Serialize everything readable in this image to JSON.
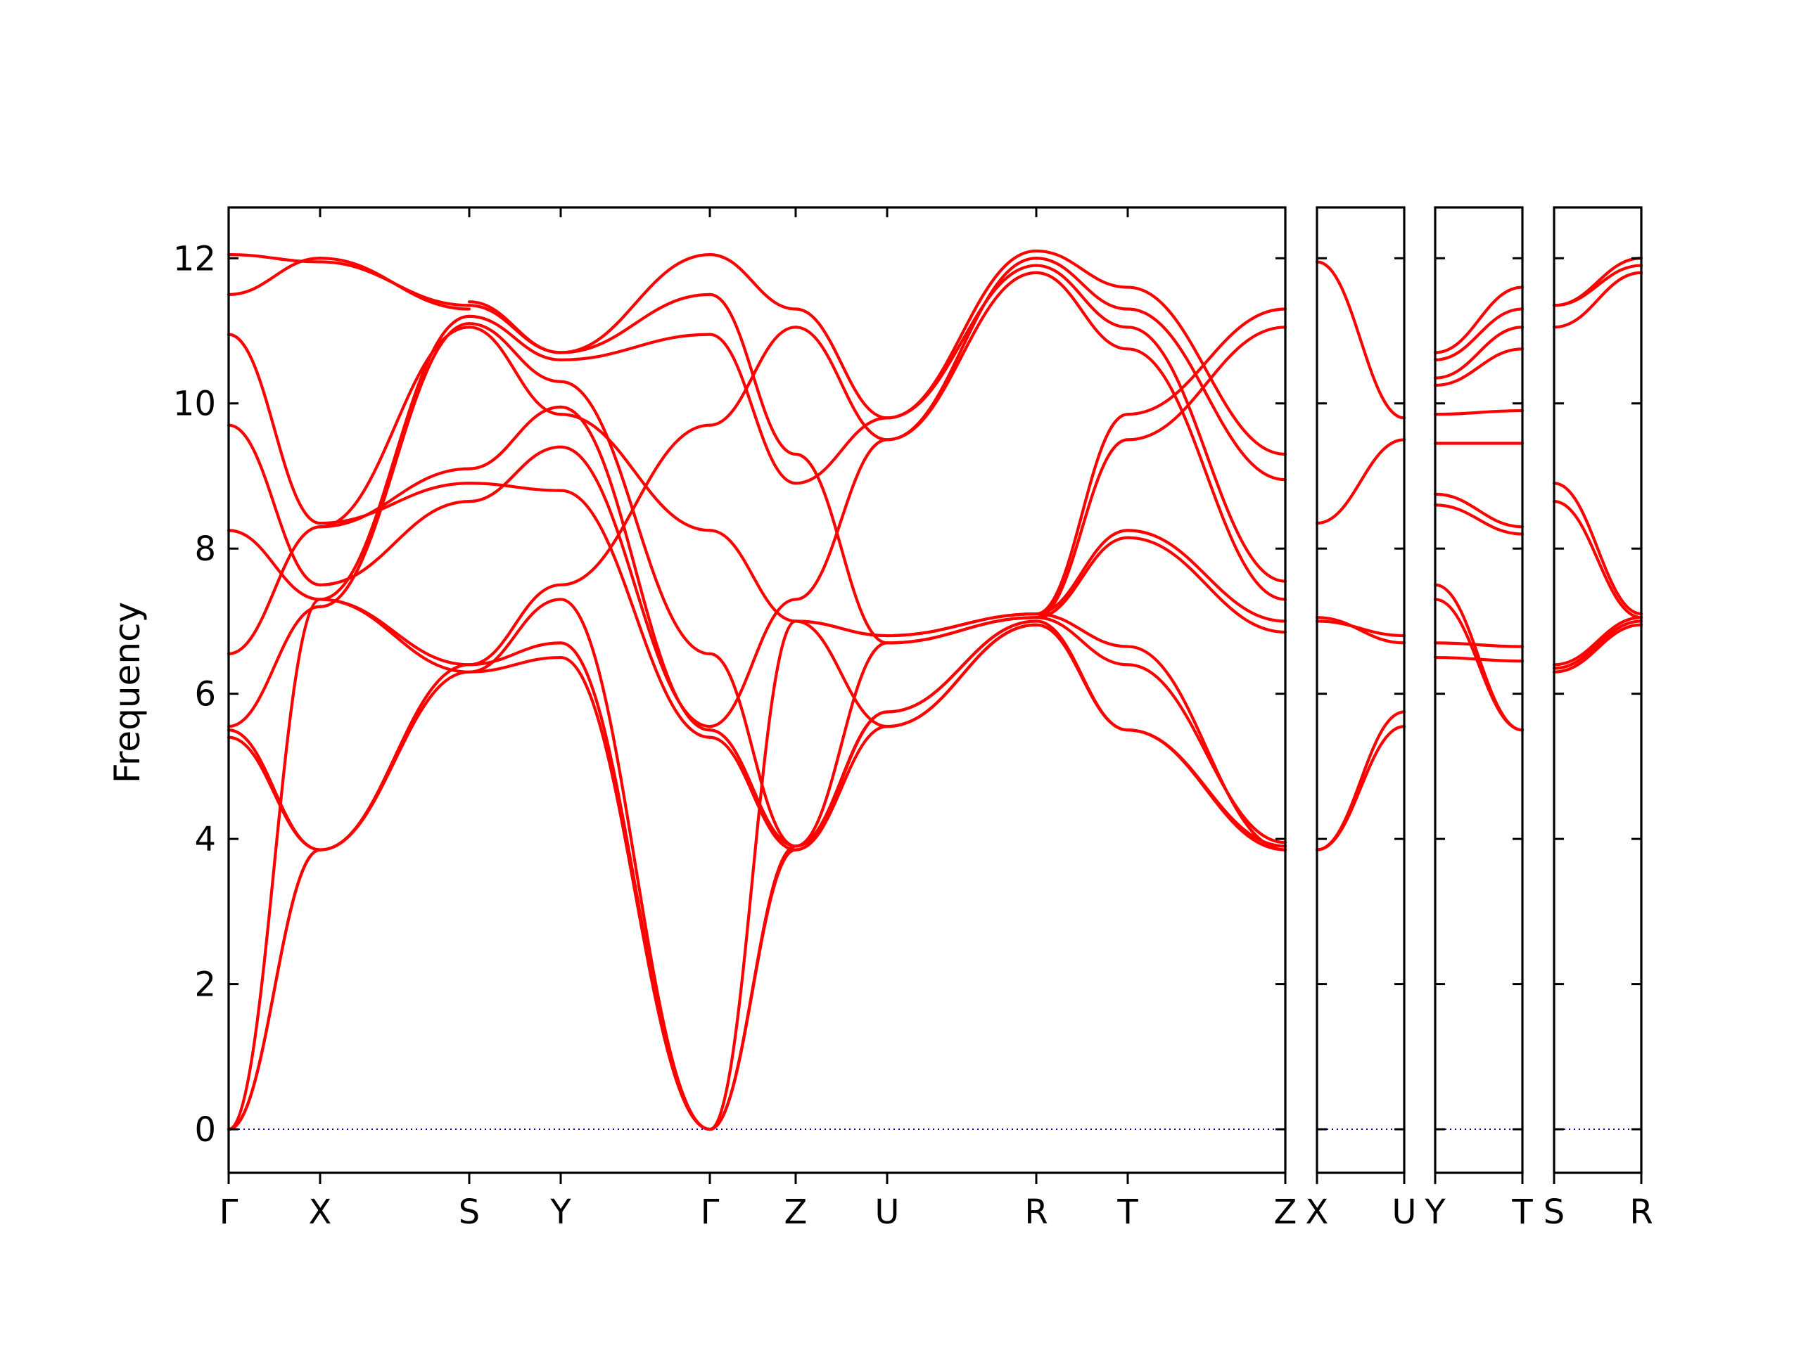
{
  "chart_data": {
    "type": "line",
    "title": "",
    "xlabel": "",
    "ylabel": "Frequency",
    "ylim": [
      -0.6,
      12.7
    ],
    "yticks": [
      0,
      2,
      4,
      6,
      8,
      10,
      12
    ],
    "grid": false,
    "colors": {
      "band": "#ff0000",
      "zero_line": "#0000cc",
      "axes": "#000000"
    },
    "segments": [
      {
        "labels": [
          "Γ",
          "X"
        ],
        "bands": [
          [
            0,
            3.85
          ],
          [
            0,
            3.85
          ],
          [
            0,
            7.3
          ],
          [
            5.4,
            3.85
          ],
          [
            5.5,
            3.85
          ],
          [
            5.55,
            7.2
          ],
          [
            6.55,
            8.3
          ],
          [
            8.25,
            7.3
          ],
          [
            9.7,
            7.5
          ],
          [
            10.95,
            8.35
          ],
          [
            11.5,
            12.0
          ],
          [
            12.05,
            11.95
          ]
        ]
      },
      {
        "labels": [
          "X",
          "S"
        ],
        "bands": [
          [
            3.85,
            6.3
          ],
          [
            3.85,
            6.4
          ],
          [
            7.3,
            6.3
          ],
          [
            7.3,
            6.4
          ],
          [
            8.35,
            8.9
          ],
          [
            7.5,
            8.65
          ],
          [
            8.3,
            11.05
          ],
          [
            11.95,
            11.35
          ],
          [
            7.2,
            11.1
          ],
          [
            12.0,
            11.3
          ],
          [
            7.3,
            11.2
          ],
          [
            8.3,
            9.1
          ]
        ]
      },
      {
        "labels": [
          "S",
          "Y"
        ],
        "bands": [
          [
            6.3,
            6.5
          ],
          [
            6.4,
            6.7
          ],
          [
            6.3,
            7.3
          ],
          [
            6.4,
            7.5
          ],
          [
            8.65,
            9.4
          ],
          [
            8.9,
            8.8
          ],
          [
            9.1,
            9.95
          ],
          [
            11.05,
            9.85
          ],
          [
            11.1,
            10.3
          ],
          [
            11.2,
            10.6
          ],
          [
            11.35,
            10.7
          ],
          [
            11.4,
            10.7
          ]
        ]
      },
      {
        "labels": [
          "Y",
          "Γ"
        ],
        "bands": [
          [
            6.5,
            0
          ],
          [
            6.7,
            0
          ],
          [
            7.3,
            0
          ],
          [
            7.5,
            9.7
          ],
          [
            8.8,
            5.4
          ],
          [
            9.4,
            5.55
          ],
          [
            9.95,
            5.5
          ],
          [
            9.85,
            8.25
          ],
          [
            10.3,
            6.55
          ],
          [
            10.6,
            10.95
          ],
          [
            10.7,
            11.5
          ],
          [
            10.7,
            12.05
          ]
        ]
      },
      {
        "labels": [
          "Γ",
          "Z"
        ],
        "bands": [
          [
            0,
            3.85
          ],
          [
            0,
            3.9
          ],
          [
            0,
            7.0
          ],
          [
            5.4,
            3.85
          ],
          [
            5.5,
            3.9
          ],
          [
            5.55,
            7.3
          ],
          [
            6.55,
            3.9
          ],
          [
            8.25,
            7.0
          ],
          [
            9.7,
            11.05
          ],
          [
            10.95,
            8.9
          ],
          [
            11.5,
            9.3
          ],
          [
            12.05,
            11.3
          ]
        ]
      },
      {
        "labels": [
          "Z",
          "U"
        ],
        "bands": [
          [
            3.85,
            5.55
          ],
          [
            3.9,
            5.75
          ],
          [
            3.9,
            6.7
          ],
          [
            7.0,
            6.8
          ],
          [
            7.3,
            9.5
          ],
          [
            8.9,
            9.8
          ],
          [
            9.3,
            6.7
          ],
          [
            11.05,
            9.5
          ],
          [
            11.3,
            9.8
          ],
          [
            7.0,
            5.55
          ],
          [
            3.85,
            5.75
          ],
          [
            7.0,
            6.8
          ]
        ]
      },
      {
        "labels": [
          "U",
          "R"
        ],
        "bands": [
          [
            5.55,
            6.95
          ],
          [
            5.75,
            7.0
          ],
          [
            6.7,
            7.05
          ],
          [
            6.8,
            7.1
          ],
          [
            9.5,
            11.8
          ],
          [
            9.8,
            11.9
          ],
          [
            9.5,
            12.0
          ],
          [
            9.8,
            12.1
          ],
          [
            6.7,
            7.05
          ],
          [
            6.8,
            7.1
          ],
          [
            5.55,
            6.95
          ],
          [
            5.75,
            7.0
          ]
        ]
      },
      {
        "labels": [
          "R",
          "T"
        ],
        "bands": [
          [
            6.95,
            5.5
          ],
          [
            7.0,
            5.5
          ],
          [
            7.05,
            6.4
          ],
          [
            7.1,
            6.65
          ],
          [
            7.05,
            8.15
          ],
          [
            7.1,
            8.25
          ],
          [
            7.05,
            9.5
          ],
          [
            7.1,
            9.85
          ],
          [
            11.8,
            10.75
          ],
          [
            11.9,
            11.05
          ],
          [
            12.0,
            11.3
          ],
          [
            12.1,
            11.6
          ]
        ]
      },
      {
        "labels": [
          "T",
          "Z"
        ],
        "bands": [
          [
            5.5,
            3.85
          ],
          [
            5.5,
            3.9
          ],
          [
            6.4,
            3.95
          ],
          [
            6.65,
            3.85
          ],
          [
            8.15,
            6.85
          ],
          [
            8.25,
            7.0
          ],
          [
            9.5,
            11.05
          ],
          [
            9.85,
            11.3
          ],
          [
            10.75,
            7.3
          ],
          [
            11.05,
            7.55
          ],
          [
            11.3,
            8.95
          ],
          [
            11.6,
            9.3
          ]
        ]
      },
      {
        "labels": [
          "X",
          "U"
        ],
        "bands": [
          [
            3.85,
            5.55
          ],
          [
            3.85,
            5.75
          ],
          [
            7.05,
            6.7
          ],
          [
            7.0,
            6.8
          ],
          [
            8.35,
            9.5
          ],
          [
            11.95,
            9.8
          ]
        ]
      },
      {
        "labels": [
          "Y",
          "T"
        ],
        "bands": [
          [
            6.5,
            6.45
          ],
          [
            6.7,
            6.65
          ],
          [
            7.3,
            5.5
          ],
          [
            7.5,
            5.5
          ],
          [
            8.6,
            8.2
          ],
          [
            8.75,
            8.3
          ],
          [
            9.45,
            9.45
          ],
          [
            9.85,
            9.9
          ],
          [
            10.25,
            10.75
          ],
          [
            10.35,
            11.05
          ],
          [
            10.6,
            11.3
          ],
          [
            10.7,
            11.6
          ]
        ]
      },
      {
        "labels": [
          "S",
          "R"
        ],
        "bands": [
          [
            6.3,
            6.95
          ],
          [
            6.35,
            7.0
          ],
          [
            6.4,
            7.05
          ],
          [
            8.65,
            7.05
          ],
          [
            8.9,
            7.1
          ],
          [
            11.05,
            11.8
          ],
          [
            11.35,
            11.9
          ],
          [
            11.35,
            12.0
          ]
        ]
      }
    ],
    "panels": [
      {
        "segments": [
          0,
          1,
          2,
          3,
          4,
          5,
          6,
          7,
          8
        ],
        "tick_labels": [
          "Γ",
          "X",
          "S",
          "Y",
          "Γ",
          "Z",
          "U",
          "R",
          "T",
          "Z"
        ]
      },
      {
        "segments": [
          9
        ],
        "tick_labels": [
          "X",
          "U"
        ]
      },
      {
        "segments": [
          10
        ],
        "tick_labels": [
          "Y",
          "T"
        ]
      },
      {
        "segments": [
          11
        ],
        "tick_labels": [
          "S",
          "R"
        ]
      }
    ]
  }
}
